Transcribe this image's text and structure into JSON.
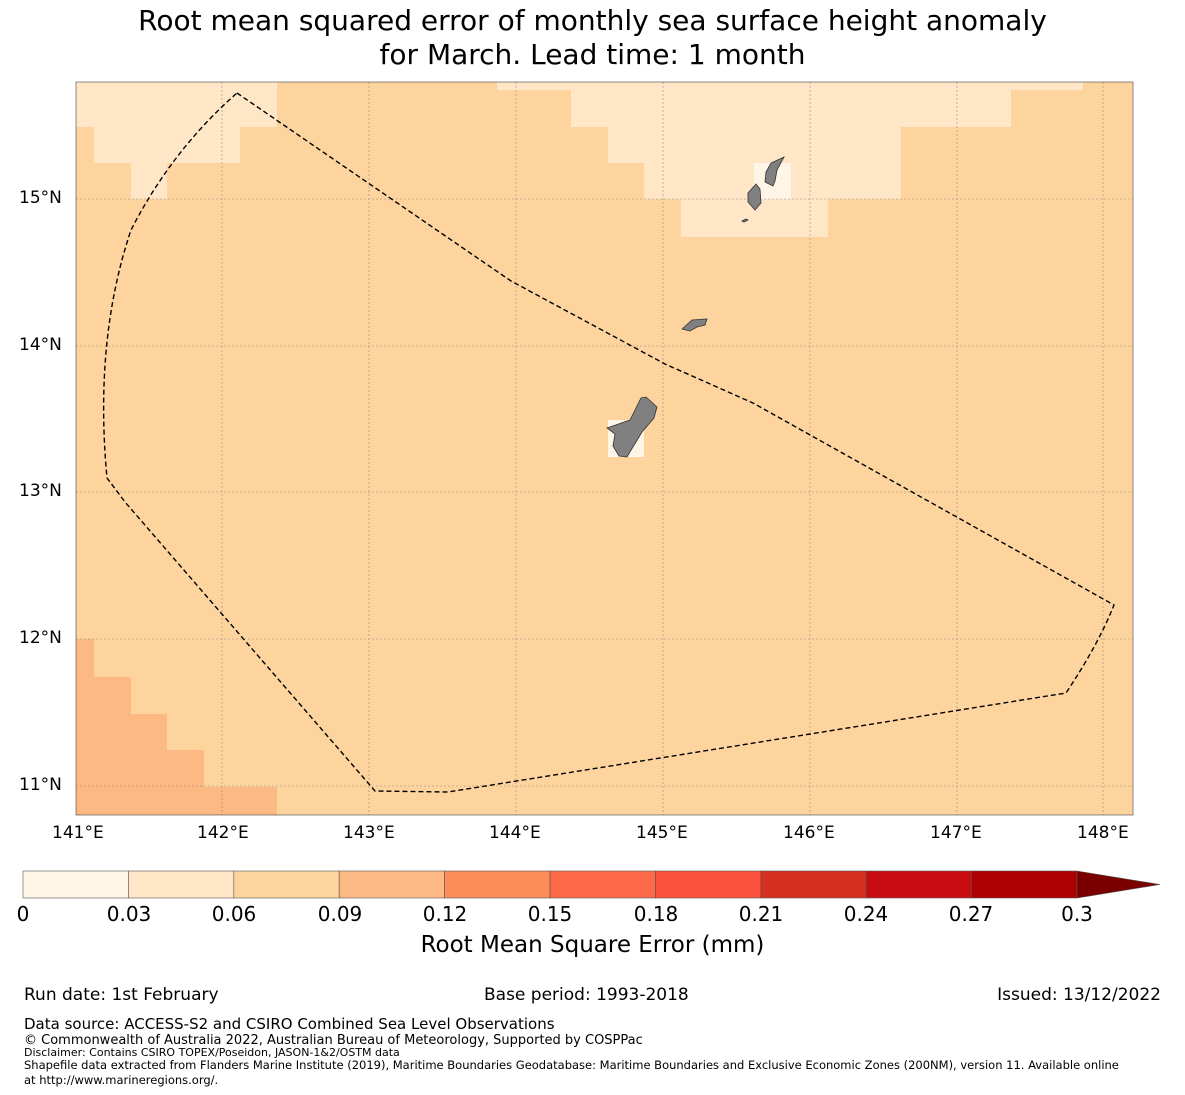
{
  "title": {
    "line1": "Root mean squared error of monthly sea surface height anomaly",
    "line2": "for March. Lead time: 1 month"
  },
  "map": {
    "x_axis_labels": [
      "141°E",
      "142°E",
      "143°E",
      "144°E",
      "145°E",
      "146°E",
      "147°E",
      "148°E"
    ],
    "y_axis_labels": [
      "15°N",
      "14°N",
      "13°N",
      "12°N",
      "11°N"
    ],
    "lon_range": [
      140.96,
      148.2
    ],
    "lat_range": [
      10.8,
      15.8
    ],
    "colors": {
      "bin_0_03": "#fff5e6",
      "bin_03_06": "#fee6c7",
      "bin_06_09": "#fdd49e",
      "bin_09_12": "#fcb983",
      "land": "#808080",
      "boundary": "#000000"
    }
  },
  "colorbar": {
    "tick_labels": [
      "0",
      "0.03",
      "0.06",
      "0.09",
      "0.12",
      "0.15",
      "0.18",
      "0.21",
      "0.24",
      "0.27",
      "0.3"
    ],
    "colors": [
      "#fff5e6",
      "#fee6c7",
      "#fdd49e",
      "#fcb983",
      "#fc8d59",
      "#fc6a4a",
      "#fb5039",
      "#d42f20",
      "#c80c12",
      "#ad0000",
      "#7a0000"
    ],
    "label": "Root Mean Square Error (mm)"
  },
  "meta": {
    "run_date": "Run date: 1st February",
    "base_period": "Base period: 1993-2018",
    "issued": "Issued: 13/12/2022"
  },
  "footer": {
    "data_source": "Data source: ACCESS-S2 and CSIRO Combined Sea Level Observations",
    "copyright": "© Commonwealth of Australia 2022, Australian Bureau of Meteorology, Supported by COSPPac",
    "disclaimer": "Disclaimer: Contains CSIRO TOPEX/Poseidon, JASON-1&2/OSTM data",
    "shapefile_line1": "Shapefile data extracted from Flanders Marine Institute (2019), Maritime Boundaries Geodatabase: Maritime Boundaries and Exclusive Economic Zones (200NM), version 11. Available online",
    "shapefile_line2": "at http://www.marineregions.org/."
  }
}
